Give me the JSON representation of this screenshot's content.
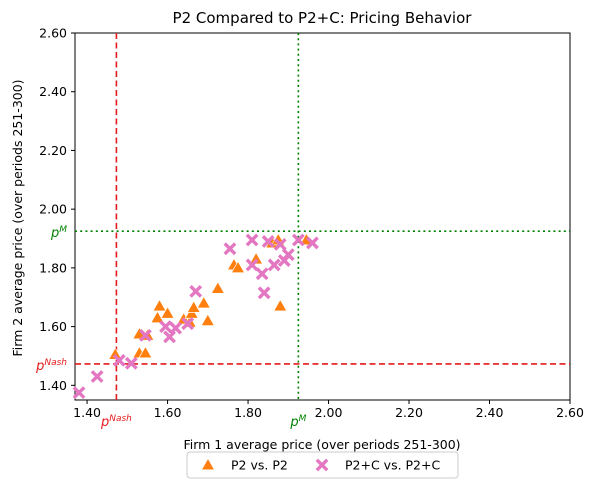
{
  "chart_data": {
    "type": "scatter",
    "title": "P2 Compared to P2+C: Pricing Behavior",
    "xlabel": "Firm 1 average price (over periods 251-300)",
    "ylabel": "Firm 2 average price (over periods 251-300)",
    "xlim": [
      1.37,
      2.6
    ],
    "ylim": [
      1.35,
      2.6
    ],
    "xticks": [
      {
        "value": 1.4,
        "label": "1.40"
      },
      {
        "value": 1.6,
        "label": "1.60"
      },
      {
        "value": 1.8,
        "label": "1.80"
      },
      {
        "value": 2.0,
        "label": "2.00"
      },
      {
        "value": 2.2,
        "label": "2.20"
      },
      {
        "value": 2.4,
        "label": "2.40"
      },
      {
        "value": 2.6,
        "label": "2.60"
      }
    ],
    "yticks": [
      {
        "value": 1.4,
        "label": "1.40"
      },
      {
        "value": 1.6,
        "label": "1.60"
      },
      {
        "value": 1.8,
        "label": "1.80"
      },
      {
        "value": 2.0,
        "label": "2.00"
      },
      {
        "value": 2.2,
        "label": "2.20"
      },
      {
        "value": 2.4,
        "label": "2.40"
      },
      {
        "value": 2.6,
        "label": "2.60"
      }
    ],
    "grid": false,
    "legend_position": "bottom-center-outside",
    "reference_lines": [
      {
        "name": "nash",
        "value": 1.4729,
        "color": "#e41a1c",
        "style": "dashed",
        "label_base": "p",
        "label_sup": "Nash"
      },
      {
        "name": "monopoly",
        "value": 1.925,
        "color": "#008000",
        "style": "dotted",
        "label_base": "p",
        "label_sup": "M"
      }
    ],
    "series": [
      {
        "name": "P2 vs. P2",
        "marker": "triangle",
        "color": "#ff7f0e",
        "points": [
          [
            1.47,
            1.505
          ],
          [
            1.53,
            1.51
          ],
          [
            1.545,
            1.51
          ],
          [
            1.53,
            1.575
          ],
          [
            1.55,
            1.57
          ],
          [
            1.575,
            1.63
          ],
          [
            1.58,
            1.67
          ],
          [
            1.6,
            1.645
          ],
          [
            1.64,
            1.625
          ],
          [
            1.655,
            1.615
          ],
          [
            1.66,
            1.645
          ],
          [
            1.665,
            1.665
          ],
          [
            1.69,
            1.68
          ],
          [
            1.7,
            1.62
          ],
          [
            1.725,
            1.73
          ],
          [
            1.765,
            1.81
          ],
          [
            1.775,
            1.8
          ],
          [
            1.82,
            1.83
          ],
          [
            1.86,
            1.885
          ],
          [
            1.875,
            1.895
          ],
          [
            1.88,
            1.67
          ],
          [
            1.945,
            1.895
          ]
        ]
      },
      {
        "name": "P2+C vs. P2+C",
        "marker": "x",
        "color": "#e377c2",
        "points": [
          [
            1.38,
            1.375
          ],
          [
            1.425,
            1.43
          ],
          [
            1.48,
            1.485
          ],
          [
            1.51,
            1.475
          ],
          [
            1.545,
            1.57
          ],
          [
            1.595,
            1.6
          ],
          [
            1.605,
            1.565
          ],
          [
            1.62,
            1.595
          ],
          [
            1.65,
            1.61
          ],
          [
            1.67,
            1.72
          ],
          [
            1.755,
            1.865
          ],
          [
            1.81,
            1.81
          ],
          [
            1.81,
            1.895
          ],
          [
            1.835,
            1.78
          ],
          [
            1.84,
            1.715
          ],
          [
            1.85,
            1.89
          ],
          [
            1.865,
            1.81
          ],
          [
            1.88,
            1.88
          ],
          [
            1.89,
            1.825
          ],
          [
            1.9,
            1.845
          ],
          [
            1.925,
            1.895
          ],
          [
            1.96,
            1.885
          ]
        ]
      }
    ]
  }
}
